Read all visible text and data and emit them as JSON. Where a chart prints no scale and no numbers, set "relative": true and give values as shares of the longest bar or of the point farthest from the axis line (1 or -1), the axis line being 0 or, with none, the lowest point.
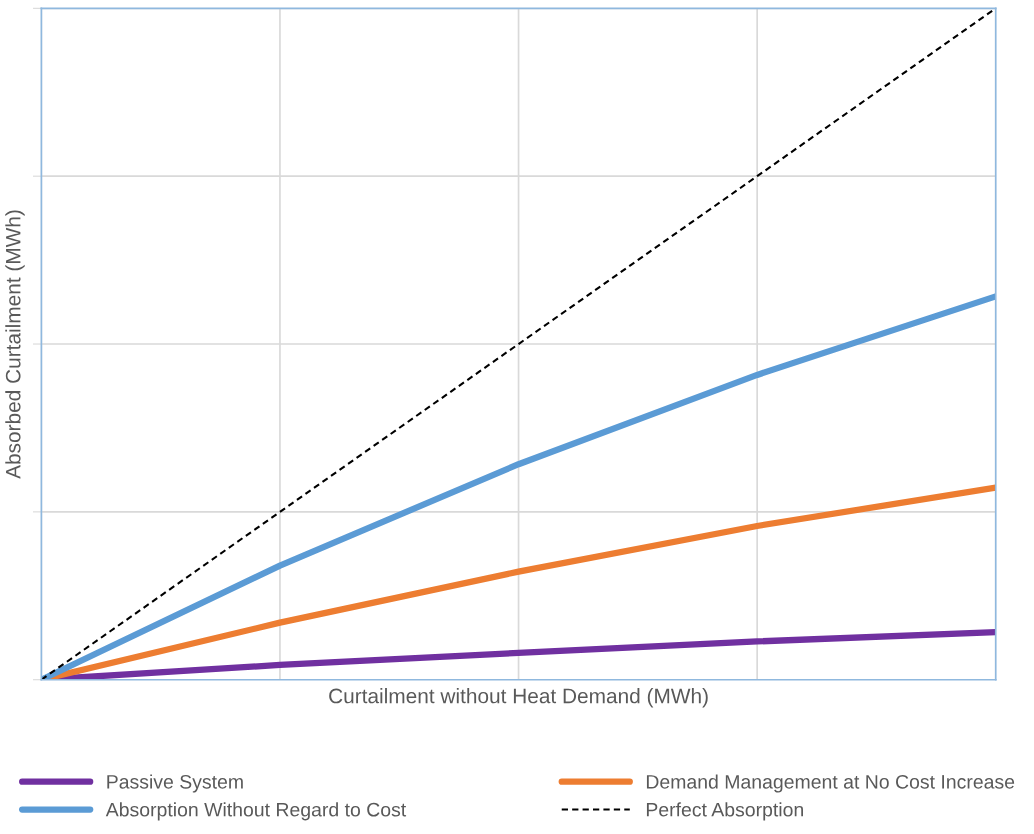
{
  "chart_data": {
    "type": "line",
    "relative": true,
    "xlabel": "Curtailment without Heat Demand (MWh)",
    "ylabel": "Absorbed Curtailment (MWh)",
    "categories": [
      null,
      null,
      null,
      null,
      null
    ],
    "series": [
      {
        "name": "Passive System",
        "color": "#7030a0",
        "values": [
          0,
          0.022,
          0.04,
          0.057,
          0.071
        ]
      },
      {
        "name": "Demand Management at No Cost Increase",
        "color": "#ed7d31",
        "values": [
          0,
          0.085,
          0.161,
          0.229,
          0.286
        ]
      },
      {
        "name": "Absorption Without Regard to Cost",
        "color": "#5b9bd5",
        "values": [
          0,
          0.17,
          0.321,
          0.454,
          0.571
        ]
      },
      {
        "name": "Perfect Absorption",
        "color": "#000000",
        "line_style": "dashed",
        "values": [
          0,
          0.25,
          0.5,
          0.75,
          1
        ]
      }
    ],
    "grid": true,
    "legend": "bottom",
    "tick_labels": false,
    "marker": "none"
  }
}
